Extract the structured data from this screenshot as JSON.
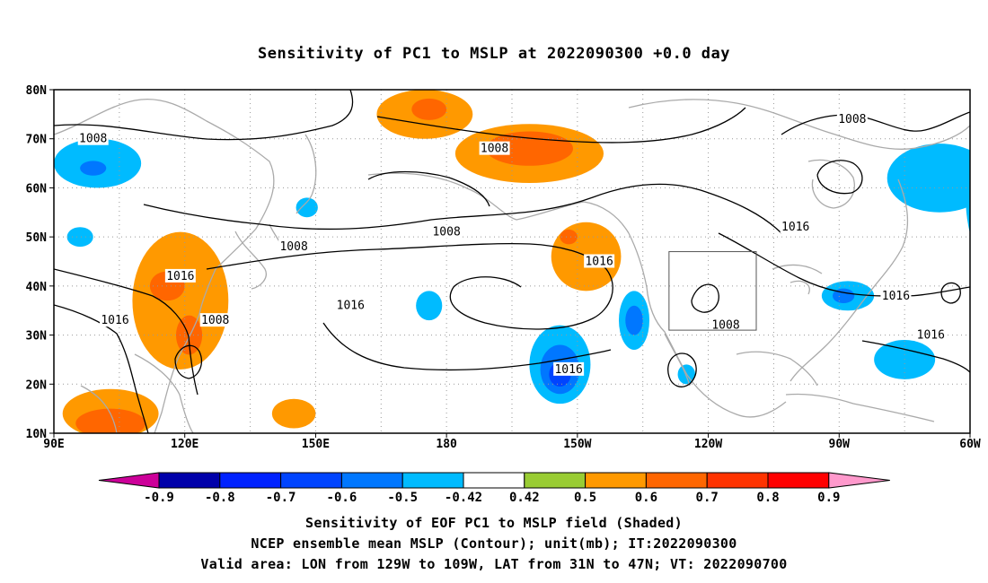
{
  "title": "Sensitivity of PC1 to MSLP at 2022090300 +0.0 day",
  "map": {
    "lon_range": [
      "90E",
      "300E (60W)"
    ],
    "lat_range": [
      10,
      80
    ],
    "lat_labels": [
      "80N",
      "70N",
      "60N",
      "50N",
      "40N",
      "30N",
      "20N",
      "10N"
    ],
    "lon_labels": [
      "90E",
      "120E",
      "150E",
      "180",
      "150W",
      "120W",
      "90W",
      "60W"
    ],
    "grid": "dotted",
    "coastline_color": "#aaaaaa",
    "valid_box": {
      "lon_from": "129W",
      "lon_to": "109W",
      "lat_from": "31N",
      "lat_to": "47N"
    }
  },
  "contours": {
    "variable": "NCEP ensemble mean MSLP",
    "labels": [
      {
        "text": "1008",
        "lon": 99,
        "lat": 70
      },
      {
        "text": "1008",
        "lon": 191,
        "lat": 68
      },
      {
        "text": "1008",
        "lon": 273,
        "lat": 74
      },
      {
        "text": "1008",
        "lon": 145,
        "lat": 48
      },
      {
        "text": "1008",
        "lon": 180,
        "lat": 51
      },
      {
        "text": "1008",
        "lon": 127,
        "lat": 33
      },
      {
        "text": "1008",
        "lon": 244,
        "lat": 32
      },
      {
        "text": "1016",
        "lon": 119,
        "lat": 42
      },
      {
        "text": "1016",
        "lon": 104,
        "lat": 33
      },
      {
        "text": "1016",
        "lon": 158,
        "lat": 36
      },
      {
        "text": "1016",
        "lon": 215,
        "lat": 45
      },
      {
        "text": "1016",
        "lon": 208,
        "lat": 23
      },
      {
        "text": "1016",
        "lon": 260,
        "lat": 52
      },
      {
        "text": "1016",
        "lon": 283,
        "lat": 38
      },
      {
        "text": "1016",
        "lon": 291,
        "lat": 30
      }
    ]
  },
  "shading": {
    "variable": "Sensitivity of EOF PC1 to MSLP",
    "blobs": [
      {
        "lon": 100,
        "lat": 65,
        "rx": 10,
        "ry": 5,
        "value": -0.5
      },
      {
        "lon": 99,
        "lat": 64,
        "rx": 3,
        "ry": 1.5,
        "value": -0.6
      },
      {
        "lon": 148,
        "lat": 56,
        "rx": 2.5,
        "ry": 2,
        "value": -0.5
      },
      {
        "lon": 96,
        "lat": 50,
        "rx": 3,
        "ry": 2,
        "value": -0.5
      },
      {
        "lon": 175,
        "lat": 75,
        "rx": 11,
        "ry": 5,
        "value": 0.5
      },
      {
        "lon": 176,
        "lat": 76,
        "rx": 4,
        "ry": 2.2,
        "value": 0.6
      },
      {
        "lon": 199,
        "lat": 67,
        "rx": 17,
        "ry": 6,
        "value": 0.5
      },
      {
        "lon": 199,
        "lat": 68,
        "rx": 10,
        "ry": 3.5,
        "value": 0.6
      },
      {
        "lon": 212,
        "lat": 46,
        "rx": 8,
        "ry": 7,
        "value": 0.5
      },
      {
        "lon": 208,
        "lat": 50,
        "rx": 2,
        "ry": 1.5,
        "value": 0.6
      },
      {
        "lon": 119,
        "lat": 37,
        "rx": 11,
        "ry": 14,
        "value": 0.5
      },
      {
        "lon": 116,
        "lat": 40,
        "rx": 4,
        "ry": 3,
        "value": 0.6
      },
      {
        "lon": 121,
        "lat": 30,
        "rx": 3,
        "ry": 4,
        "value": 0.6
      },
      {
        "lon": 103,
        "lat": 14,
        "rx": 11,
        "ry": 5,
        "value": 0.5
      },
      {
        "lon": 103,
        "lat": 12,
        "rx": 8,
        "ry": 3,
        "value": 0.6
      },
      {
        "lon": 145,
        "lat": 14,
        "rx": 5,
        "ry": 3,
        "value": 0.5
      },
      {
        "lon": 176,
        "lat": 36,
        "rx": 3,
        "ry": 3,
        "value": -0.5
      },
      {
        "lon": 206,
        "lat": 24,
        "rx": 7,
        "ry": 8,
        "value": -0.5
      },
      {
        "lon": 206,
        "lat": 23,
        "rx": 4.5,
        "ry": 5,
        "value": -0.6
      },
      {
        "lon": 206,
        "lat": 22,
        "rx": 2.5,
        "ry": 2.5,
        "value": -0.7
      },
      {
        "lon": 223,
        "lat": 33,
        "rx": 3.5,
        "ry": 6,
        "value": -0.5
      },
      {
        "lon": 223,
        "lat": 33,
        "rx": 2,
        "ry": 3,
        "value": -0.6
      },
      {
        "lon": 235,
        "lat": 22,
        "rx": 2,
        "ry": 2,
        "value": -0.5
      },
      {
        "lon": 272,
        "lat": 38,
        "rx": 6,
        "ry": 3,
        "value": -0.5
      },
      {
        "lon": 271,
        "lat": 38,
        "rx": 2.5,
        "ry": 1.5,
        "value": -0.6
      },
      {
        "lon": 285,
        "lat": 25,
        "rx": 7,
        "ry": 4,
        "value": -0.5
      },
      {
        "lon": 293,
        "lat": 62,
        "rx": 12,
        "ry": 7,
        "value": -0.5
      },
      {
        "lon": 307,
        "lat": 58,
        "rx": 8,
        "ry": 15,
        "value": -0.5
      },
      {
        "lon": 307,
        "lat": 57,
        "rx": 5,
        "ry": 11,
        "value": -0.6
      },
      {
        "lon": 308,
        "lat": 59,
        "rx": 2.5,
        "ry": 6,
        "value": -0.7
      }
    ]
  },
  "colorbar": {
    "tick_labels": [
      "-0.9",
      "-0.8",
      "-0.7",
      "-0.6",
      "-0.5",
      "-0.42",
      "0.42",
      "0.5",
      "0.6",
      "0.7",
      "0.8",
      "0.9"
    ],
    "colors": [
      "#cc0099",
      "#0000aa",
      "#0022ff",
      "#0044ff",
      "#0077ff",
      "#00bbff",
      "#ffffff",
      "#99cc33",
      "#ff9900",
      "#ff6600",
      "#ff3300",
      "#ff0000",
      "#ff99cc"
    ]
  },
  "captions": {
    "line1": "Sensitivity of EOF PC1 to MSLP field (Shaded)",
    "line2": "NCEP ensemble mean MSLP (Contour); unit(mb); IT:2022090300",
    "line3": "Valid area: LON from 129W to 109W, LAT from 31N to 47N; VT: 2022090700"
  }
}
